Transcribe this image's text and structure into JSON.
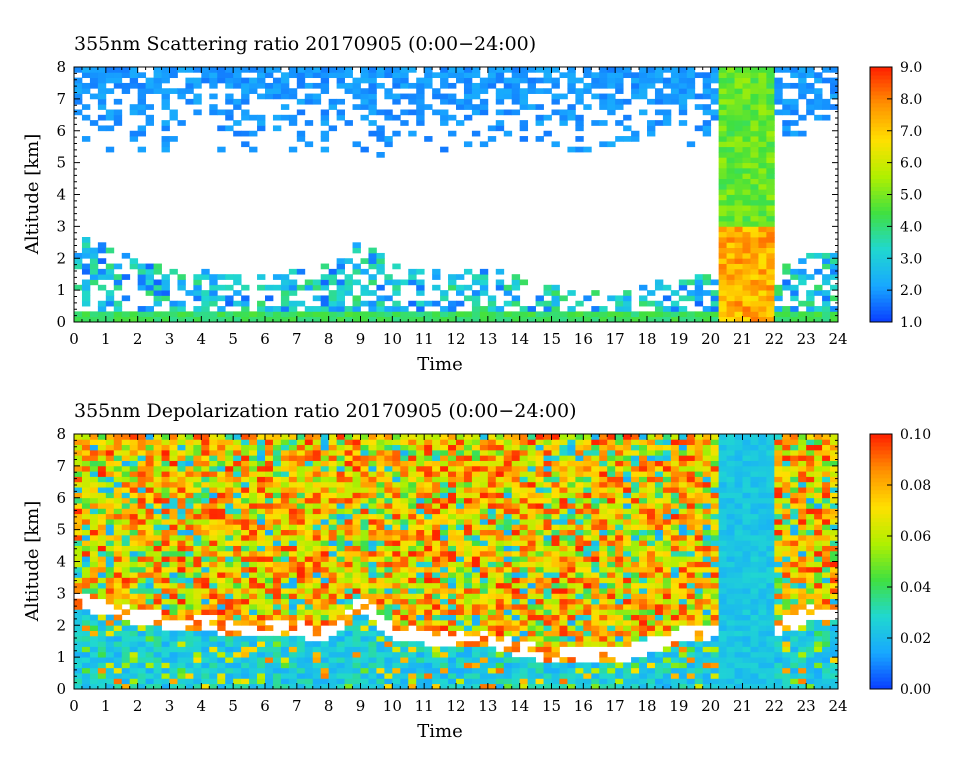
{
  "chart_data": [
    {
      "type": "heatmap",
      "title": "355nm Scattering ratio  20170905 (0:00−24:00)",
      "xlabel": "Time",
      "ylabel": "Altitude [km]",
      "xlim": [
        0,
        24
      ],
      "ylim": [
        0,
        8
      ],
      "xticks": [
        "0",
        "1",
        "2",
        "3",
        "4",
        "5",
        "6",
        "7",
        "8",
        "9",
        "10",
        "11",
        "12",
        "13",
        "14",
        "15",
        "16",
        "17",
        "18",
        "19",
        "20",
        "21",
        "22",
        "23",
        "24"
      ],
      "yticks": [
        "0",
        "1",
        "2",
        "3",
        "4",
        "5",
        "6",
        "7",
        "8"
      ],
      "colorbar": {
        "min": 1.0,
        "max": 9.0,
        "ticks": [
          "1.0",
          "2.0",
          "3.0",
          "4.0",
          "5.0",
          "6.0",
          "7.0",
          "8.0",
          "9.0"
        ]
      },
      "colormap": [
        "#0a3cff",
        "#18a8ff",
        "#20d8d0",
        "#40e040",
        "#b0f000",
        "#ffe000",
        "#ff9000",
        "#ff2000"
      ],
      "features": {
        "boundary_layer_top_km": [
          {
            "t": 0,
            "h": 2.7
          },
          {
            "t": 1,
            "h": 2.4
          },
          {
            "t": 2,
            "h": 1.9
          },
          {
            "t": 3,
            "h": 1.7
          },
          {
            "t": 4,
            "h": 1.6
          },
          {
            "t": 5,
            "h": 1.5
          },
          {
            "t": 6,
            "h": 1.5
          },
          {
            "t": 7,
            "h": 1.6
          },
          {
            "t": 8,
            "h": 1.8
          },
          {
            "t": 9,
            "h": 2.6
          },
          {
            "t": 10,
            "h": 1.8
          },
          {
            "t": 11,
            "h": 1.7
          },
          {
            "t": 12,
            "h": 1.6
          },
          {
            "t": 13,
            "h": 1.7
          },
          {
            "t": 14,
            "h": 1.4
          },
          {
            "t": 15,
            "h": 1.1
          },
          {
            "t": 16,
            "h": 1.0
          },
          {
            "t": 17,
            "h": 0.9
          },
          {
            "t": 18,
            "h": 1.2
          },
          {
            "t": 19,
            "h": 1.4
          },
          {
            "t": 20,
            "h": 1.5
          },
          {
            "t": 21,
            "h": 1.5
          },
          {
            "t": 22,
            "h": 1.6
          },
          {
            "t": 23,
            "h": 2.2
          },
          {
            "t": 24,
            "h": 2.2
          }
        ],
        "cloud_column": {
          "t_start": 20.2,
          "t_end": 22.1,
          "h_top": 8.0
        }
      }
    },
    {
      "type": "heatmap",
      "title": "355nm Depolarization ratio  20170905 (0:00−24:00)",
      "xlabel": "Time",
      "ylabel": "Altitude [km]",
      "xlim": [
        0,
        24
      ],
      "ylim": [
        0,
        8
      ],
      "xticks": [
        "0",
        "1",
        "2",
        "3",
        "4",
        "5",
        "6",
        "7",
        "8",
        "9",
        "10",
        "11",
        "12",
        "13",
        "14",
        "15",
        "16",
        "17",
        "18",
        "19",
        "20",
        "21",
        "22",
        "23",
        "24"
      ],
      "yticks": [
        "0",
        "1",
        "2",
        "3",
        "4",
        "5",
        "6",
        "7",
        "8"
      ],
      "colorbar": {
        "min": 0.0,
        "max": 0.1,
        "ticks": [
          "0.00",
          "0.02",
          "0.04",
          "0.06",
          "0.08",
          "0.10"
        ]
      },
      "colormap": [
        "#0a3cff",
        "#18a8ff",
        "#20d8d0",
        "#40e040",
        "#b0f000",
        "#ffe000",
        "#ff9000",
        "#ff2000"
      ],
      "features": {
        "boundary_layer_top_km": [
          {
            "t": 0,
            "h": 2.6
          },
          {
            "t": 1,
            "h": 2.3
          },
          {
            "t": 2,
            "h": 2.0
          },
          {
            "t": 3,
            "h": 1.9
          },
          {
            "t": 4,
            "h": 1.8
          },
          {
            "t": 5,
            "h": 1.7
          },
          {
            "t": 6,
            "h": 1.7
          },
          {
            "t": 7,
            "h": 1.6
          },
          {
            "t": 8,
            "h": 1.5
          },
          {
            "t": 9,
            "h": 2.4
          },
          {
            "t": 10,
            "h": 1.6
          },
          {
            "t": 11,
            "h": 1.4
          },
          {
            "t": 12,
            "h": 1.3
          },
          {
            "t": 13,
            "h": 1.3
          },
          {
            "t": 14,
            "h": 1.0
          },
          {
            "t": 15,
            "h": 0.8
          },
          {
            "t": 16,
            "h": 0.8
          },
          {
            "t": 17,
            "h": 0.8
          },
          {
            "t": 18,
            "h": 1.1
          },
          {
            "t": 19,
            "h": 1.4
          },
          {
            "t": 20,
            "h": 1.6
          },
          {
            "t": 21,
            "h": 1.6
          },
          {
            "t": 22,
            "h": 1.6
          },
          {
            "t": 23,
            "h": 2.1
          },
          {
            "t": 24,
            "h": 2.1
          }
        ],
        "cloud_column": {
          "t_start": 20.2,
          "t_end": 22.1,
          "h_top": 8.0
        }
      }
    }
  ]
}
